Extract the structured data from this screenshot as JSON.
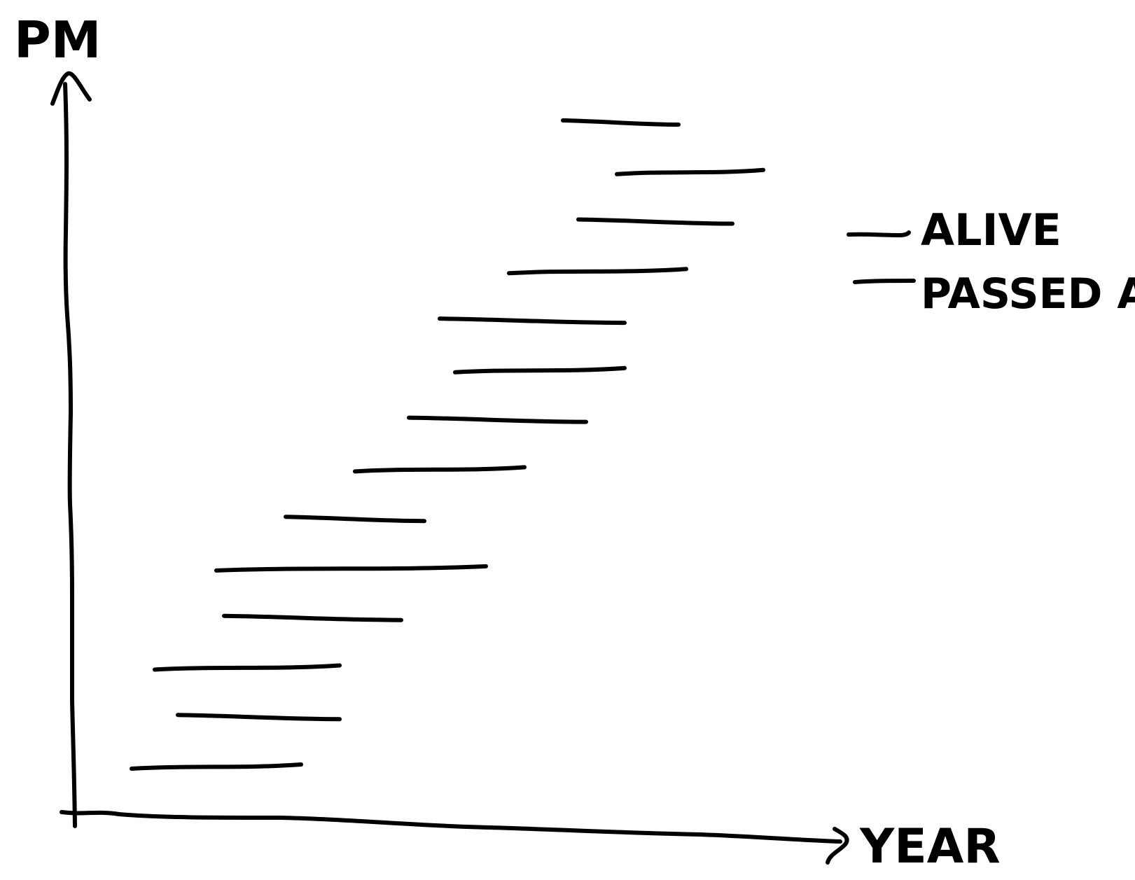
{
  "chart_data": {
    "type": "timeline",
    "ylabel": "PM",
    "xlabel": "YEAR",
    "legend": {
      "placement": "right",
      "entries": [
        "ALIVE",
        "PASSED AWAY"
      ]
    },
    "series": [
      {
        "name": "PMs",
        "bars": [
          {
            "start": 0.08,
            "end": 0.3
          },
          {
            "start": 0.14,
            "end": 0.35
          },
          {
            "start": 0.11,
            "end": 0.35
          },
          {
            "start": 0.2,
            "end": 0.43
          },
          {
            "start": 0.19,
            "end": 0.54
          },
          {
            "start": 0.28,
            "end": 0.46
          },
          {
            "start": 0.37,
            "end": 0.59
          },
          {
            "start": 0.44,
            "end": 0.67
          },
          {
            "start": 0.5,
            "end": 0.72
          },
          {
            "start": 0.48,
            "end": 0.72
          },
          {
            "start": 0.57,
            "end": 0.8
          },
          {
            "start": 0.66,
            "end": 0.86
          },
          {
            "start": 0.71,
            "end": 0.9
          },
          {
            "start": 0.64,
            "end": 0.79
          }
        ]
      }
    ],
    "xlim": [
      0,
      1
    ],
    "ylim": [
      0,
      15
    ],
    "grid": false
  },
  "colors": {
    "ink": "#000000",
    "background": "#ffffff"
  }
}
